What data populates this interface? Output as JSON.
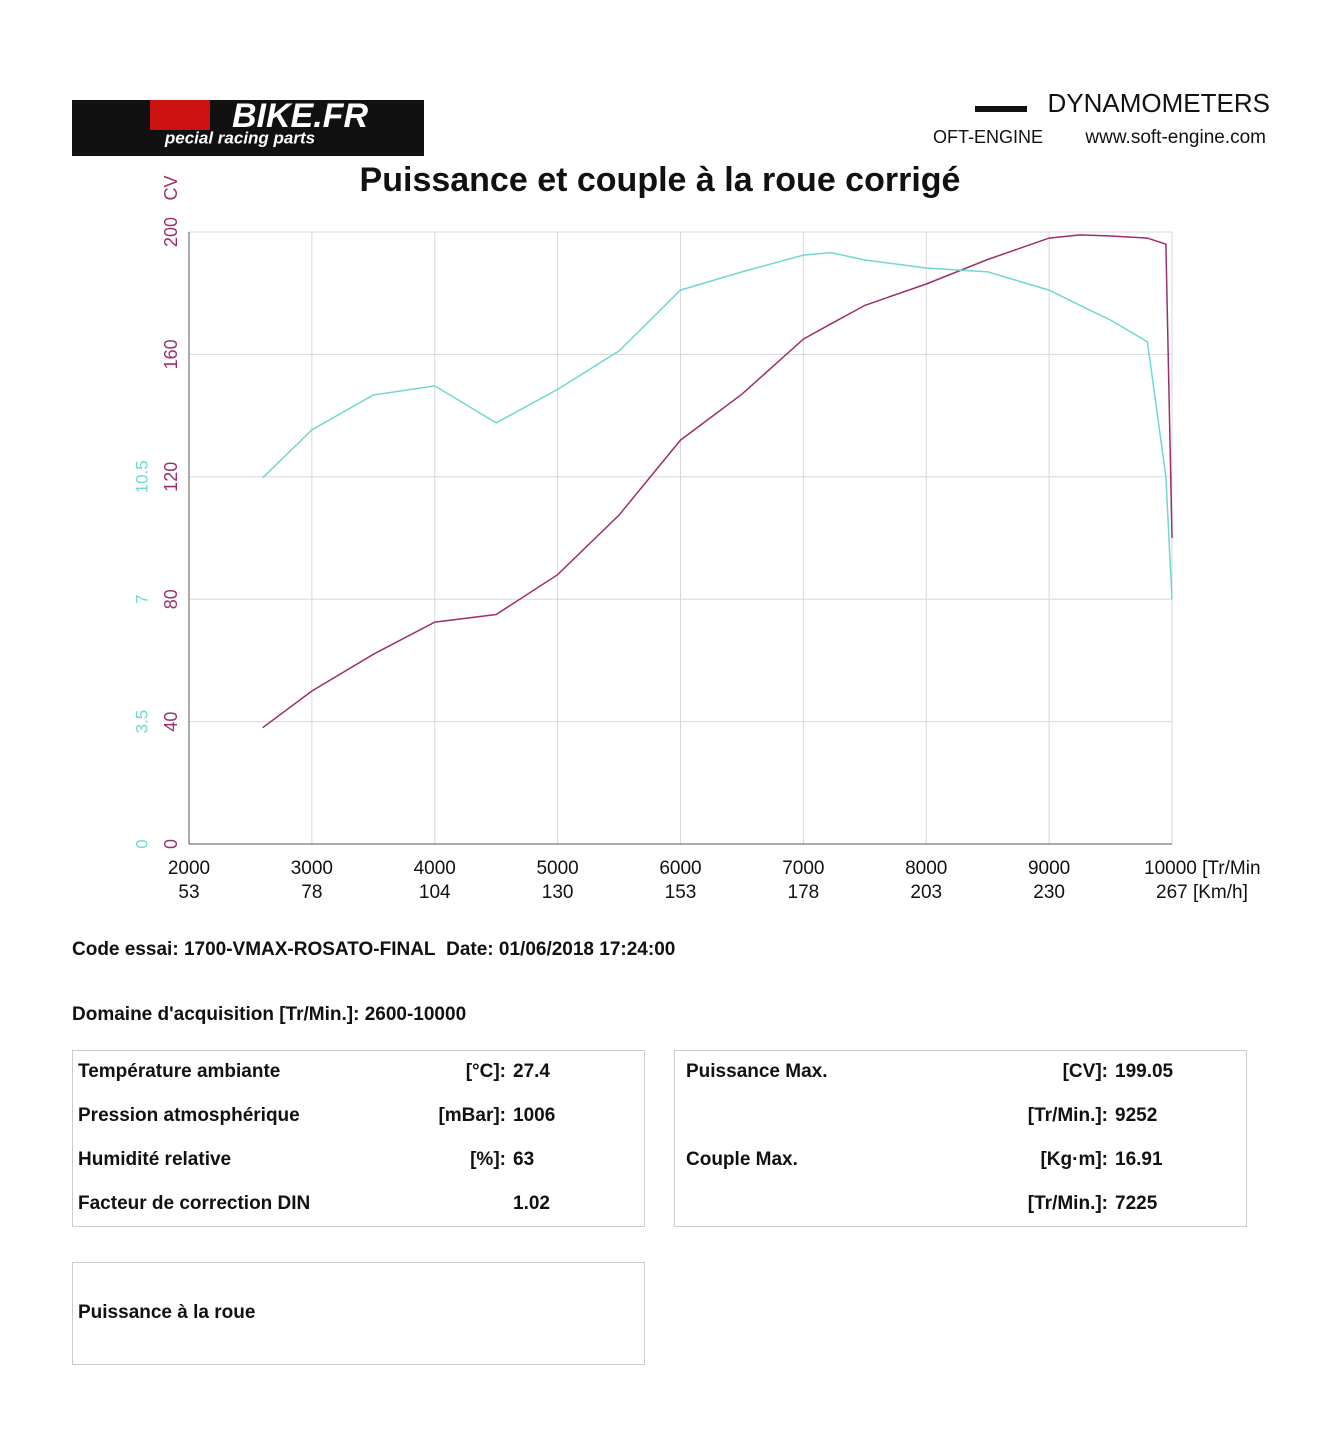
{
  "header": {
    "logo_left": "BIKE.FR",
    "logo_left_tagline": "pecial racing parts",
    "brand": "DYNAMOMETERS",
    "brand_logo": "OFT-ENGINE",
    "website": "www.soft-engine.com"
  },
  "chart_data": {
    "type": "line",
    "title": "Puissance et couple à la roue corrigé",
    "y_label": "CV",
    "x": [
      2600,
      3000,
      3500,
      4000,
      4500,
      5000,
      5500,
      6000,
      6500,
      7000,
      7225,
      7500,
      8000,
      8500,
      9000,
      9252,
      9500,
      9800,
      9950,
      10000
    ],
    "series": [
      {
        "name": "Puissance",
        "color": "#9b2f6e",
        "values": [
          38,
          50,
          62,
          72.5,
          75,
          88,
          107.5,
          132,
          147,
          165,
          170,
          176,
          183,
          191,
          198,
          199.05,
          198.7,
          198,
          196,
          100
        ]
      },
      {
        "name": "Couple",
        "color": "#6fd8d0",
        "axis": "y2",
        "values": [
          10.47,
          11.84,
          12.84,
          13.1,
          12.04,
          13.0,
          14.1,
          15.84,
          16.36,
          16.84,
          16.91,
          16.7,
          16.47,
          16.36,
          15.84,
          15.4,
          14.98,
          14.36,
          10.5,
          7
        ]
      }
    ],
    "xlim": [
      2000,
      10000
    ],
    "xticks": [
      2000,
      3000,
      4000,
      5000,
      6000,
      7000,
      8000,
      9000,
      {
        "value": 10000,
        "label": "10000 [Tr/Min"
      }
    ],
    "x_secondary_labels": [
      "53",
      "78",
      "104",
      "130",
      "153",
      "178",
      "203",
      "230",
      "267 [Km/h]"
    ],
    "ylim": [
      0,
      200
    ],
    "yticks": [
      0,
      40,
      80,
      120,
      160,
      200
    ],
    "y2lim": [
      0,
      17.5
    ],
    "y2ticks": [
      0,
      3.5,
      7,
      10.5
    ],
    "grid": true
  },
  "test_info": {
    "code_label": "Code essai:",
    "code": "1700-VMAX-ROSATO-FINAL",
    "date_label": "Date:",
    "date": "01/06/2018 17:24:00",
    "domain_label": "Domaine d'acquisition [Tr/Min.]:",
    "domain": "2600-10000"
  },
  "conditions": [
    {
      "label": "Température ambiante",
      "unit": "[°C]:",
      "value": 27.4
    },
    {
      "label": "Pression atmosphérique",
      "unit": "[mBar]:",
      "value": 1006
    },
    {
      "label": "Humidité relative",
      "unit": "[%]:",
      "value": 63
    },
    {
      "label": "Facteur de correction DIN",
      "value": 1.02
    }
  ],
  "maxima": [
    {
      "label": "Puissance Max.",
      "unit": "[CV]:",
      "value": 199.05
    },
    {
      "unit": "[Tr/Min.]:",
      "value": 9252
    },
    {
      "label": "Couple Max.",
      "unit": "[Kg·m]:",
      "value": 16.91
    },
    {
      "unit": "[Tr/Min.]:",
      "value": 7225
    }
  ],
  "footer_box": "Puissance à la roue"
}
